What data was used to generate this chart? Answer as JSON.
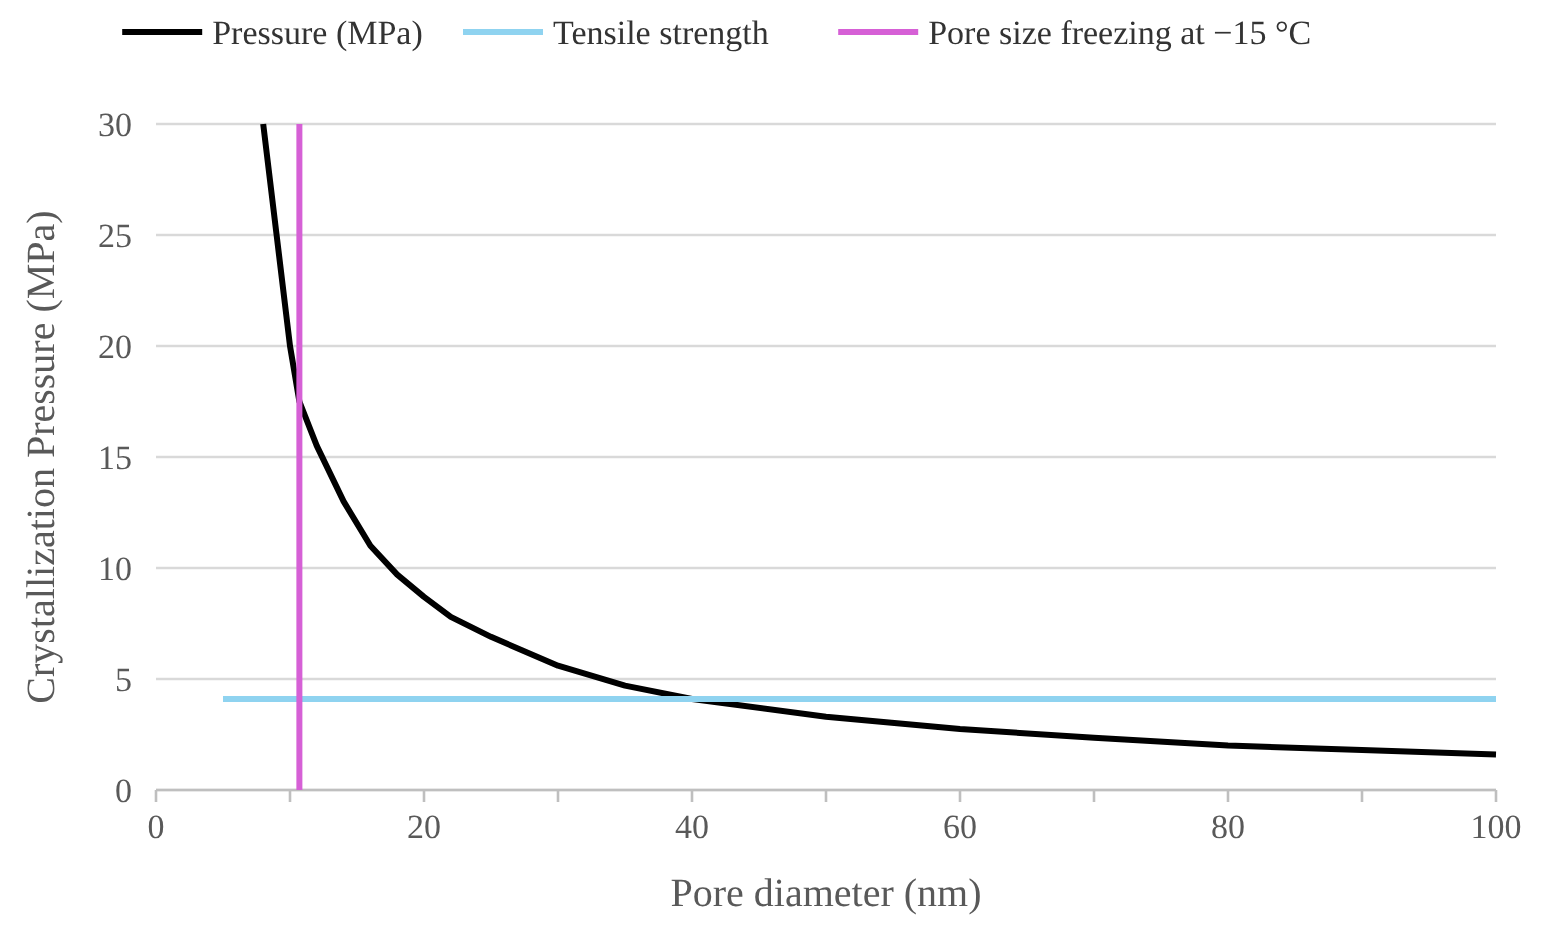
{
  "chart_data": {
    "type": "line",
    "xlabel": "Pore diameter (nm)",
    "ylabel": "Crystallization Pressure (MPa)",
    "xlim": [
      0,
      100
    ],
    "ylim": [
      0,
      30
    ],
    "xticks": [
      0,
      {
        "value": 10,
        "label": null
      },
      20,
      {
        "value": 30,
        "label": null
      },
      40,
      {
        "value": 50,
        "label": null
      },
      60,
      {
        "value": 70,
        "label": null
      },
      80,
      {
        "value": 90,
        "label": null
      },
      100
    ],
    "yticks": [
      0,
      5,
      10,
      15,
      20,
      25,
      30
    ],
    "grid": "y",
    "legend": "top",
    "marker": "none",
    "line_style": "solid",
    "series": [
      {
        "name": "Pressure (MPa)",
        "color": "#000000",
        "x": [
          8,
          9,
          10,
          10.7,
          12,
          14,
          16,
          18,
          20,
          22,
          25,
          30,
          35,
          40,
          50,
          60,
          70,
          80,
          90,
          100
        ],
        "values": [
          30,
          25,
          20,
          17.5,
          15.5,
          13,
          11,
          9.7,
          8.7,
          7.8,
          6.9,
          5.6,
          4.7,
          4.1,
          3.3,
          2.75,
          2.35,
          2,
          1.8,
          1.6
        ]
      },
      {
        "name": "Tensile strength",
        "color": "#8fd3f0",
        "x": [
          5,
          100
        ],
        "values": [
          4.1,
          4.1
        ]
      },
      {
        "name": "Pore size freezing at −15 °C",
        "color": "#d660d6",
        "x": [
          10.7,
          10.7
        ],
        "values": [
          0,
          30
        ]
      }
    ]
  }
}
